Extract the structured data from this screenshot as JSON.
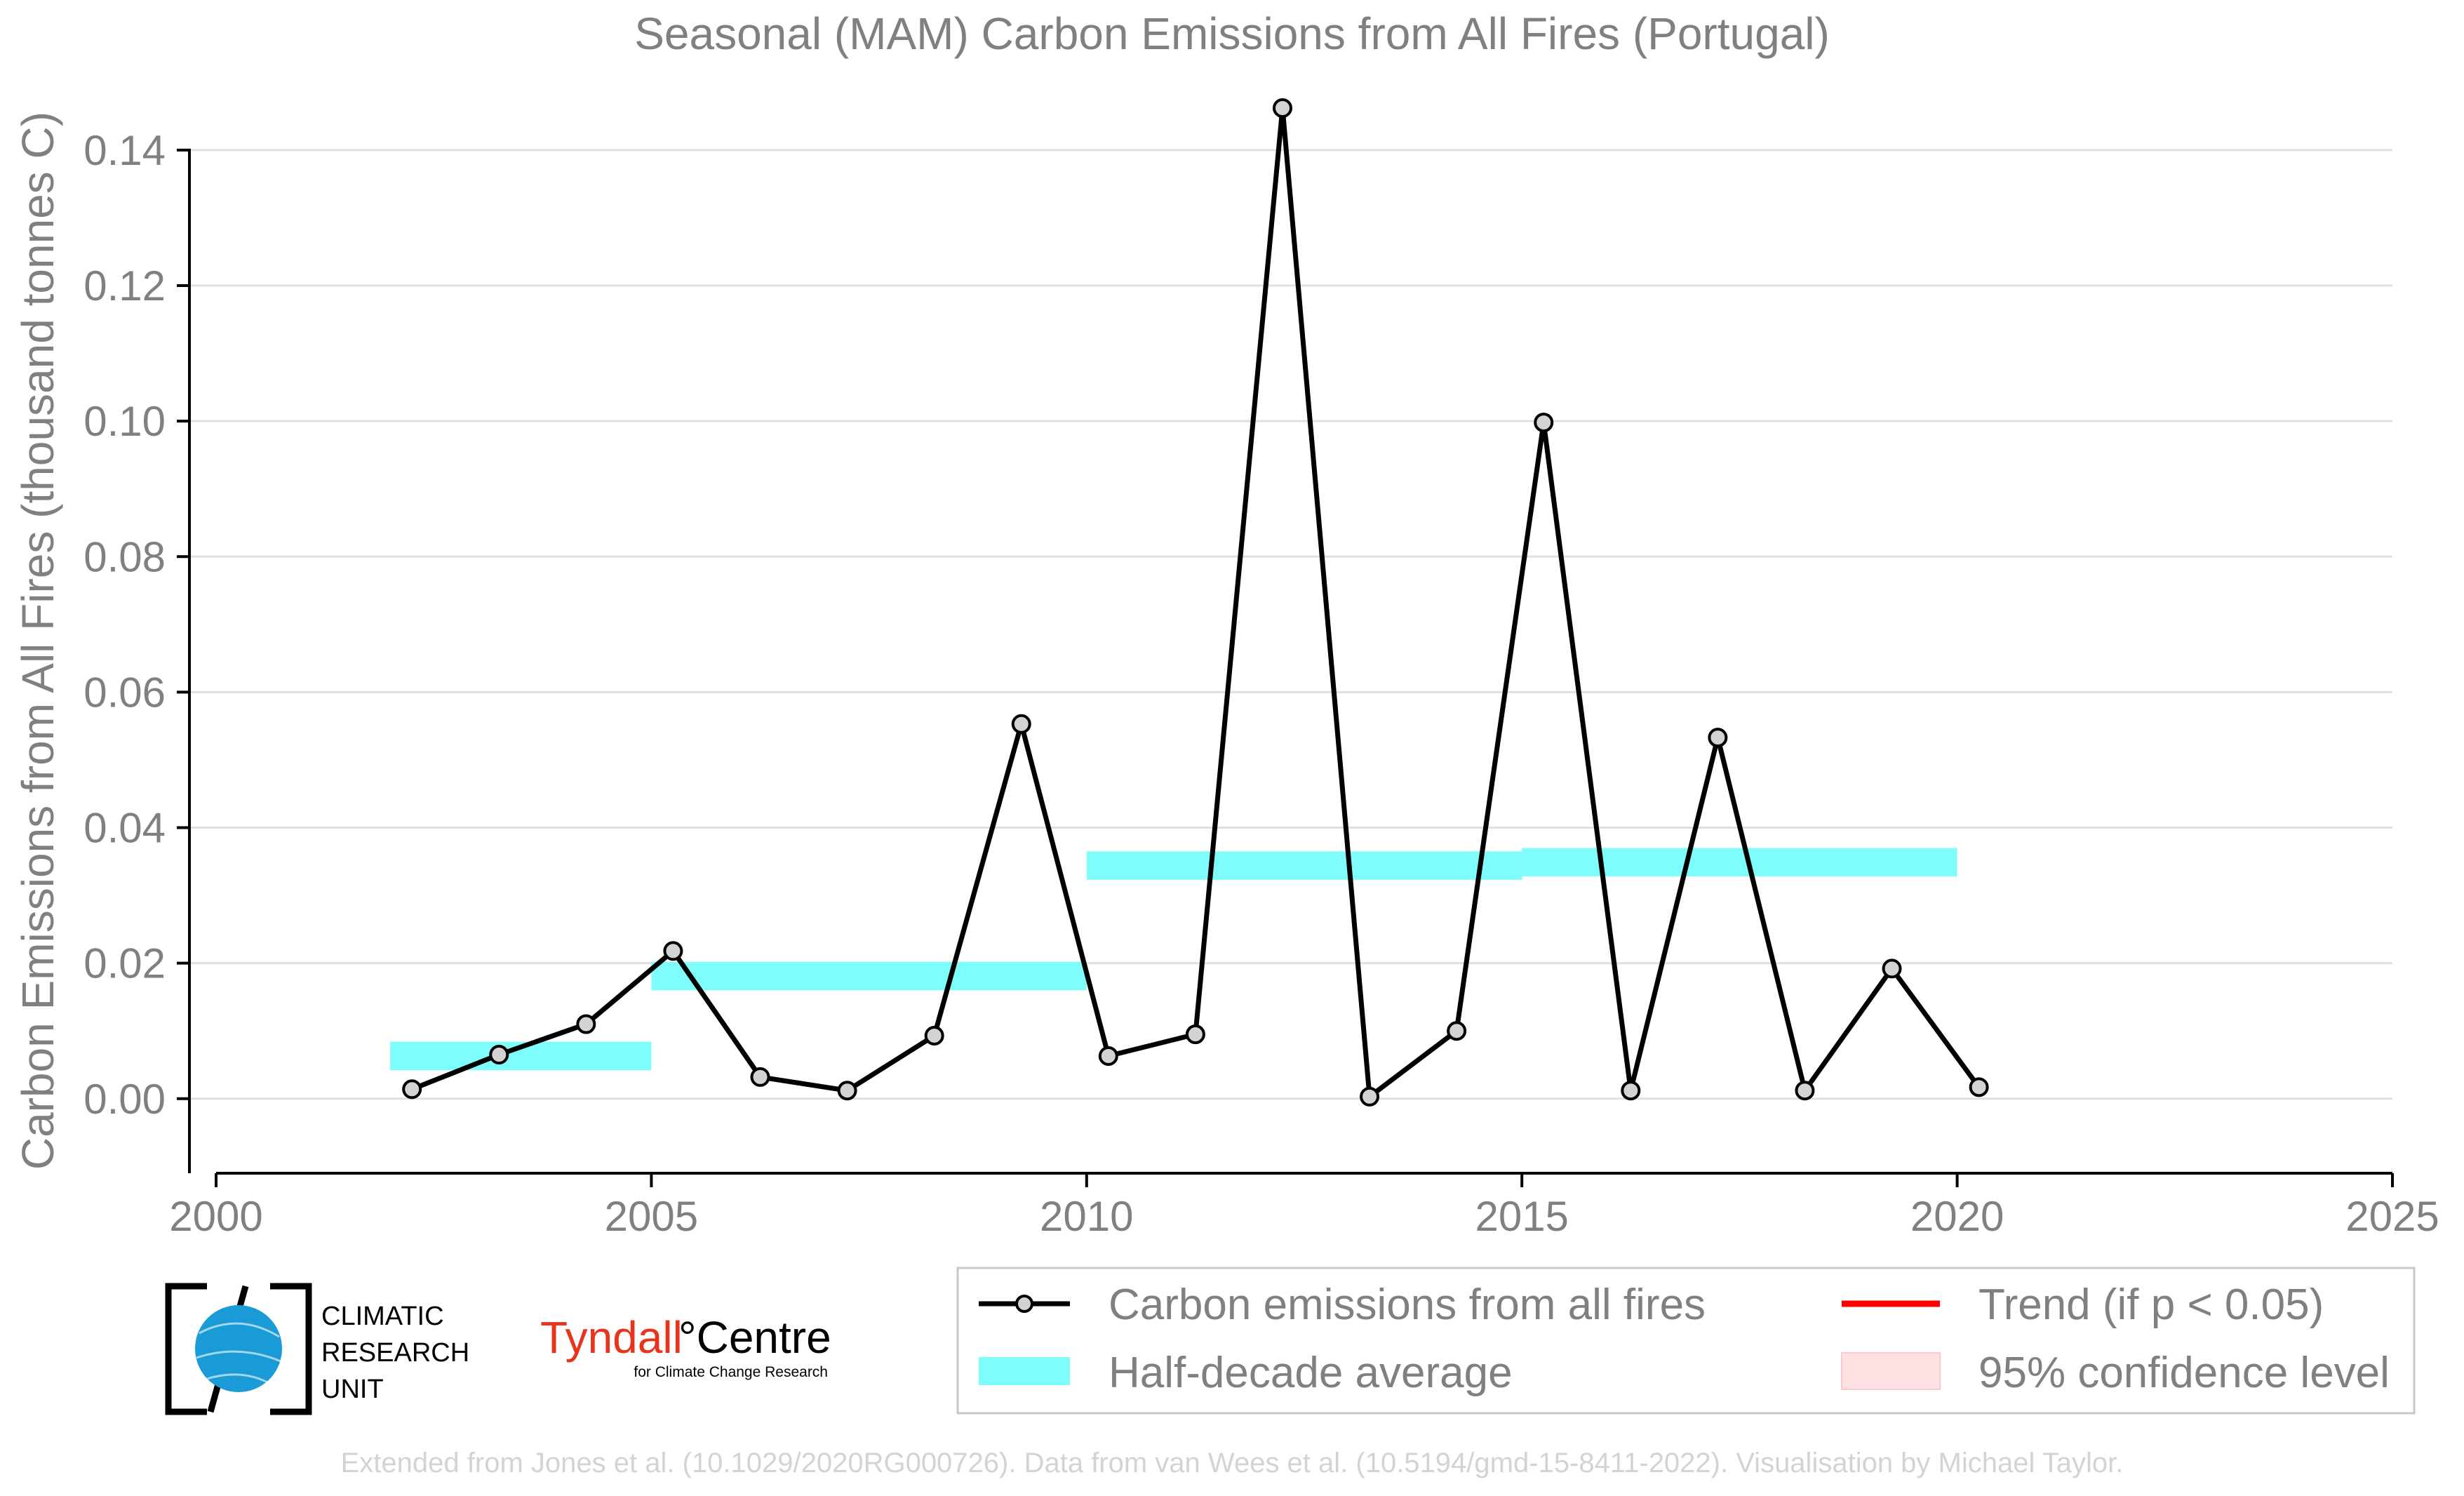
{
  "chart_data": {
    "type": "line",
    "title": "Seasonal (MAM) Carbon Emissions from All Fires (Portugal)",
    "xlabel": "",
    "ylabel": "Carbon Emissions from All Fires (thousand tonnes C)",
    "xlim": [
      2000,
      2025
    ],
    "ylim": [
      -0.011,
      0.152
    ],
    "x_ticks": [
      2000,
      2005,
      2010,
      2015,
      2020,
      2025
    ],
    "y_ticks": [
      0.0,
      0.02,
      0.04,
      0.06,
      0.08,
      0.1,
      0.12,
      0.14
    ],
    "y_tick_labels": [
      "0.00",
      "0.02",
      "0.04",
      "0.06",
      "0.08",
      "0.10",
      "0.12",
      "0.14"
    ],
    "grid": "horizontal",
    "legend_position": "bottom-right",
    "series": [
      {
        "name": "Carbon emissions from all fires",
        "color": "#000000",
        "marker_fill": "#d3d3d3",
        "x": [
          2002.25,
          2003.25,
          2004.25,
          2005.25,
          2006.25,
          2007.25,
          2008.25,
          2009.25,
          2010.25,
          2011.25,
          2012.25,
          2013.25,
          2014.25,
          2015.25,
          2016.25,
          2017.25,
          2018.25,
          2019.25,
          2020.25
        ],
        "y": [
          0.0014,
          0.0065,
          0.011,
          0.0218,
          0.0032,
          0.0012,
          0.0093,
          0.0553,
          0.0063,
          0.0095,
          0.1462,
          0.0003,
          0.01,
          0.0998,
          0.0012,
          0.0533,
          0.0012,
          0.0192,
          0.0017
        ]
      }
    ],
    "half_decade_average": {
      "name": "Half-decade average",
      "color": "#7ffcfc",
      "segments": [
        {
          "x_start": 2002,
          "x_end": 2005,
          "value": 0.0063
        },
        {
          "x_start": 2005,
          "x_end": 2010,
          "value": 0.0181
        },
        {
          "x_start": 2010,
          "x_end": 2015,
          "value": 0.0344
        },
        {
          "x_start": 2015,
          "x_end": 2020,
          "value": 0.0349
        }
      ]
    },
    "legend": [
      {
        "label": "Carbon emissions from all fires",
        "kind": "line-marker",
        "color": "#000000"
      },
      {
        "label": "Trend (if p < 0.05)",
        "kind": "line",
        "color": "#ff0000"
      },
      {
        "label": "Half-decade average",
        "kind": "band",
        "color": "#7ffcfc"
      },
      {
        "label": "95% confidence level",
        "kind": "band",
        "color": "#ffe0e3"
      }
    ]
  },
  "logos": {
    "cru": {
      "line1": "CLIMATIC",
      "line2": "RESEARCH",
      "line3": "UNIT"
    },
    "tyndall": {
      "name": "Tyndall",
      "suffix": "°Centre",
      "tagline": "for Climate Change Research",
      "color": "#e8341c"
    }
  },
  "credit": "Extended from Jones et al. (10.1029/2020RG000726). Data from van Wees et al. (10.5194/gmd-15-8411-2022). Visualisation by Michael Taylor."
}
